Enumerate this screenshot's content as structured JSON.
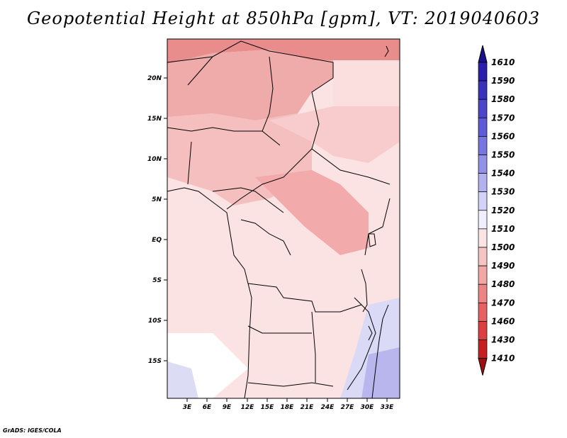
{
  "title": "Geopotential Height at 850hPa [gpm], VT: 2019040603",
  "credit": "GrADS: IGES/COLA",
  "lat_labels": [
    "20N",
    "15N",
    "10N",
    "5N",
    "EQ",
    "5S",
    "10S",
    "15S"
  ],
  "lon_labels": [
    "3E",
    "6E",
    "9E",
    "12E",
    "15E",
    "18E",
    "21E",
    "24E",
    "27E",
    "30E",
    "33E"
  ],
  "colorbar": {
    "levels": [
      "1610",
      "1590",
      "1580",
      "1570",
      "1560",
      "1550",
      "1540",
      "1530",
      "1520",
      "1510",
      "1500",
      "1490",
      "1480",
      "1470",
      "1460",
      "1430",
      "1410"
    ],
    "colors": [
      "#1a0f8c",
      "#2a1fa6",
      "#3a33b8",
      "#4c47c6",
      "#5e5cd2",
      "#7775de",
      "#9390e8",
      "#b3b1f0",
      "#d3d2f7",
      "#f0efff",
      "#fbe4e4",
      "#f7c4c4",
      "#f2a6a6",
      "#ec8686",
      "#e46262",
      "#d94040",
      "#c82020",
      "#a01010"
    ]
  }
}
